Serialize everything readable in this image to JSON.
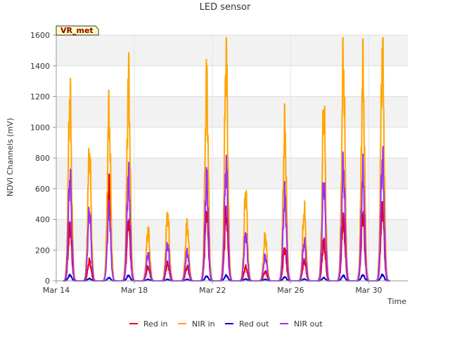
{
  "chart_data": {
    "type": "line",
    "title": "LED sensor",
    "xlabel": "Time",
    "ylabel": "NDVI Channels (mV)",
    "ylim": [
      0,
      1600
    ],
    "yticks": [
      0,
      200,
      400,
      600,
      800,
      1000,
      1200,
      1400,
      1600
    ],
    "xlim": [
      0,
      18
    ],
    "xticks": [
      {
        "value": 0,
        "label": "Mar 14"
      },
      {
        "value": 4,
        "label": "Mar 18"
      },
      {
        "value": 8,
        "label": "Mar 22"
      },
      {
        "value": 12,
        "label": "Mar 26"
      },
      {
        "value": 16,
        "label": "Mar 30"
      }
    ],
    "x_unit": "days since Mar 14",
    "badge": "VR_met",
    "legend_position": "bottom",
    "grid": true,
    "day_peak_offsets": [
      0.7,
      1.7,
      2.7,
      3.7,
      4.7,
      5.7,
      6.7,
      7.7,
      8.7,
      9.7,
      10.7,
      11.7,
      12.7,
      13.7,
      14.7,
      15.7,
      16.7
    ],
    "series": [
      {
        "name": "Red in",
        "color": "#e8000b",
        "peaks": [
          360,
          130,
          620,
          390,
          90,
          110,
          90,
          450,
          430,
          90,
          60,
          210,
          130,
          250,
          400,
          430,
          490
        ]
      },
      {
        "name": "NIR in",
        "color": "#ffa500",
        "peaks": [
          1185,
          830,
          1085,
          1295,
          330,
          430,
          370,
          1300,
          1460,
          570,
          290,
          990,
          455,
          1115,
          1410,
          1350,
          1515
        ]
      },
      {
        "name": "Red out",
        "color": "#0000cc",
        "peaks": [
          38,
          15,
          20,
          35,
          10,
          10,
          10,
          30,
          35,
          12,
          10,
          25,
          12,
          20,
          35,
          38,
          40
        ]
      },
      {
        "name": "NIR out",
        "color": "#9b30ff",
        "peaks": [
          665,
          450,
          460,
          670,
          175,
          235,
          190,
          670,
          745,
          305,
          160,
          560,
          250,
          635,
          735,
          700,
          790
        ]
      }
    ]
  }
}
